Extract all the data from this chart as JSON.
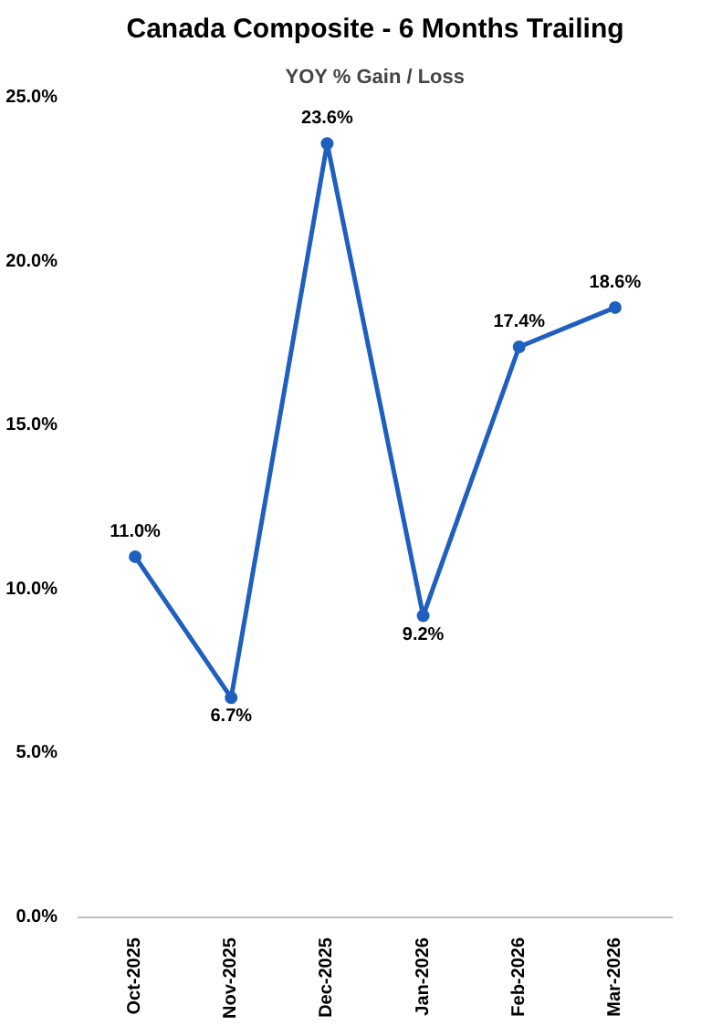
{
  "chart_data": {
    "type": "line",
    "title": "Canada Composite - 6 Months Trailing",
    "subtitle": "YOY % Gain / Loss",
    "categories": [
      "Oct-2025",
      "Nov-2025",
      "Dec-2025",
      "Jan-2026",
      "Feb-2026",
      "Mar-2026"
    ],
    "values": [
      11.0,
      6.7,
      23.6,
      9.2,
      17.4,
      18.6
    ],
    "value_labels": [
      "11.0%",
      "6.7%",
      "23.6%",
      "9.2%",
      "17.4%",
      "18.6%"
    ],
    "color": "#1f5fbf",
    "marker": "circle",
    "line_style": "solid",
    "grid": false,
    "ylim": [
      0,
      25
    ],
    "yticks": [
      {
        "value": 0,
        "label": "0.0%"
      },
      {
        "value": 5,
        "label": "5.0%"
      },
      {
        "value": 10,
        "label": "10.0%"
      },
      {
        "value": 15,
        "label": "15.0%"
      },
      {
        "value": 20,
        "label": "20.0%"
      },
      {
        "value": 25,
        "label": "25.0%"
      }
    ]
  }
}
